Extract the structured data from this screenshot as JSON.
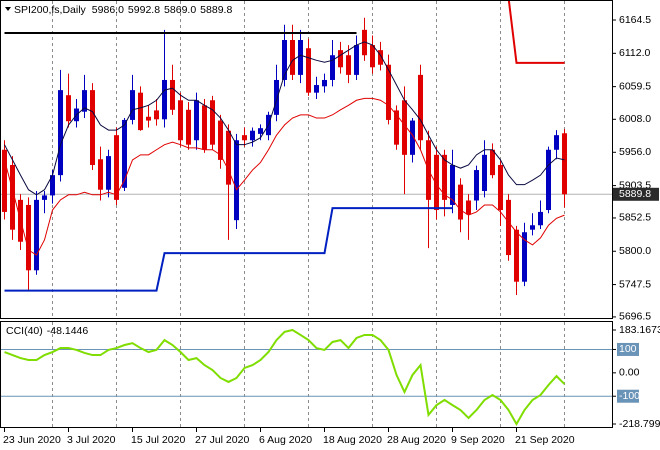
{
  "chart_data": {
    "type": "candlestick",
    "title": "SPI200,fs,Daily",
    "ohlc_labels": [
      "5986.0",
      "5992.8",
      "5869.0",
      "5889.8"
    ],
    "categories": [
      "23 Jun 2020",
      null,
      null,
      null,
      null,
      null,
      null,
      null,
      "3 Jul 2020",
      null,
      null,
      null,
      null,
      null,
      null,
      null,
      "15 Jul 2020",
      null,
      null,
      null,
      null,
      null,
      null,
      null,
      "27 Jul 2020",
      null,
      null,
      null,
      null,
      null,
      null,
      null,
      "6 Aug 2020",
      null,
      null,
      null,
      null,
      null,
      null,
      null,
      "18 Aug 2020",
      null,
      null,
      null,
      null,
      null,
      null,
      null,
      "28 Aug 2020",
      null,
      null,
      null,
      null,
      null,
      null,
      null,
      "9 Sep 2020",
      null,
      null,
      null,
      null,
      null,
      null,
      null,
      "21 Sep 2020",
      null,
      null,
      null,
      null,
      null,
      null
    ],
    "open": [
      5960,
      5936,
      5881,
      5873,
      5770,
      5881,
      5888,
      5920,
      6046,
      6005,
      6020,
      6054,
      5945,
      5897,
      5983,
      5900,
      6007,
      6050,
      6012,
      6022,
      6008,
      6070,
      6038,
      6023,
      5975,
      6030,
      6038,
      6006,
      5990,
      5849,
      5983,
      5975,
      5985,
      5983,
      6015,
      6070,
      6133,
      6078,
      6120,
      6050,
      6060,
      6070,
      6117,
      6109,
      6078,
      6149,
      6125,
      6117,
      6094,
      6022,
      6038,
      5952,
      6078,
      5975,
      5952,
      5952,
      5873,
      5905,
      5880,
      5880,
      5895,
      5960,
      5936,
      5881,
      5834,
      5752,
      5834,
      5841,
      5865,
      5960,
      5986.0
    ],
    "high": [
      5975,
      5950,
      5890,
      5885,
      5895,
      5895,
      5928,
      6086,
      6080,
      6040,
      6078,
      6065,
      5965,
      5960,
      5995,
      6010,
      6078,
      6060,
      6030,
      6040,
      6149,
      6094,
      6050,
      6035,
      6050,
      6040,
      6045,
      6015,
      6000,
      5985,
      5995,
      5995,
      6000,
      6020,
      6094,
      6157,
      6157,
      6149,
      6135,
      6075,
      6080,
      6133,
      6130,
      6125,
      6140,
      6168,
      6140,
      6130,
      6110,
      6030,
      6060,
      6010,
      6094,
      5990,
      5965,
      5960,
      5960,
      5915,
      5890,
      5935,
      5975,
      5970,
      5945,
      5890,
      5840,
      5845,
      5860,
      5880,
      5965,
      5991,
      5992.8
    ],
    "low": [
      5850,
      5818,
      5802,
      5739,
      5763,
      5860,
      5875,
      5910,
      5995,
      5995,
      6010,
      5928,
      5880,
      5885,
      5873,
      5895,
      6000,
      5990,
      5995,
      5998,
      5995,
      6015,
      5965,
      5960,
      5960,
      5955,
      5960,
      5930,
      5818,
      5835,
      5965,
      5965,
      5975,
      5975,
      6005,
      6060,
      6070,
      6065,
      6045,
      6040,
      6050,
      6060,
      6080,
      6065,
      6070,
      6100,
      6080,
      6085,
      6000,
      5960,
      5890,
      5940,
      5960,
      5805,
      5850,
      5855,
      5860,
      5830,
      5818,
      5865,
      5885,
      5915,
      5840,
      5785,
      5731,
      5745,
      5825,
      5835,
      5860,
      5945,
      5869.0
    ],
    "close": [
      5862,
      5834,
      5815,
      5770,
      5881,
      5888,
      5920,
      6054,
      6005,
      6025,
      6054,
      5936,
      5897,
      5950,
      5881,
      6007,
      6054,
      5991,
      6006,
      6008,
      6070,
      6023,
      5975,
      5968,
      6038,
      5960,
      5968,
      5944,
      5905,
      5975,
      5975,
      5990,
      5994,
      6015,
      6070,
      6133,
      6078,
      6133,
      6050,
      6062,
      6070,
      6109,
      6090,
      6078,
      6125,
      6109,
      6090,
      6094,
      6007,
      5968,
      5952,
      6006,
      5975,
      5881,
      5865,
      5881,
      5936,
      5850,
      5858,
      5928,
      5952,
      5920,
      5865,
      5794,
      5752,
      5830,
      5841,
      5862,
      5960,
      5983,
      5889.8
    ],
    "up_color": "#0000c0",
    "down_color": "#e00000",
    "ylim": [
      5694.8,
      6192.9
    ],
    "yticks": [
      6164.5,
      {
        "value": 6112,
        "label": "6112.0"
      },
      6059.5,
      {
        "value": 6008,
        "label": "6008.0"
      },
      {
        "value": 5956,
        "label": "5956.0"
      },
      5903.5,
      5852.5,
      {
        "value": 5800,
        "label": "5800.0"
      },
      5747.5,
      5696.5
    ],
    "overlays": [
      {
        "color": "#0a0a40",
        "width": 1,
        "values": [
          5968,
          5944,
          5920,
          5897,
          5889,
          5897,
          5920,
          5968,
          5999,
          6015,
          6026,
          6020,
          5999,
          5991,
          5991,
          5999,
          6023,
          6026,
          6030,
          6038,
          6054,
          6057,
          6046,
          6038,
          6038,
          6030,
          6023,
          6010,
          5991,
          5968,
          5968,
          5972,
          5979,
          5999,
          6038,
          6078,
          6101,
          6109,
          6105,
          6101,
          6098,
          6101,
          6109,
          6117,
          6125,
          6130,
          6125,
          6109,
          6086,
          6062,
          6038,
          6023,
          6007,
          5983,
          5960,
          5944,
          5936,
          5931,
          5936,
          5952,
          5960,
          5960,
          5944,
          5920,
          5905,
          5905,
          5912,
          5920,
          5936,
          5947,
          5944
        ]
      },
      {
        "color": "#e00000",
        "width": 1,
        "values": [
          5944,
          5897,
          5849,
          5802,
          5794,
          5818,
          5865,
          5881,
          5889,
          5889,
          5893,
          5889,
          5889,
          5893,
          5889,
          5912,
          5944,
          5952,
          5952,
          5960,
          5968,
          5972,
          5968,
          5963,
          5963,
          5960,
          5960,
          5952,
          5928,
          5897,
          5912,
          5928,
          5940,
          5960,
          5983,
          5999,
          6010,
          6015,
          6015,
          6010,
          6010,
          6015,
          6023,
          6030,
          6038,
          6041,
          6041,
          6038,
          6030,
          6015,
          5999,
          5983,
          5960,
          5928,
          5905,
          5889,
          5881,
          5865,
          5857,
          5862,
          5873,
          5873,
          5862,
          5846,
          5830,
          5818,
          5810,
          5821,
          5841,
          5852,
          5857
        ]
      },
      {
        "color": "#0020c0",
        "width": 2,
        "values": [
          5738,
          5738,
          5738,
          5738,
          5738,
          5738,
          5738,
          5738,
          5738,
          5738,
          5738,
          5738,
          5738,
          5738,
          5738,
          5738,
          5738,
          5738,
          5738,
          5738,
          5797,
          5797,
          5797,
          5797,
          5797,
          5797,
          5797,
          5797,
          5797,
          5797,
          5797,
          5797,
          5797,
          5797,
          5797,
          5797,
          5797,
          5797,
          5797,
          5797,
          5797,
          5868,
          5868,
          5868,
          5868,
          5868,
          5868,
          5868,
          5868,
          5868,
          5868,
          5868,
          5868,
          5868,
          5868,
          5868,
          5868,
          null,
          null,
          null,
          null,
          null,
          null,
          null,
          null,
          null,
          null,
          null,
          null,
          null,
          null
        ]
      },
      {
        "color": "#000000",
        "width": 2,
        "values": [
          6144,
          6144,
          6144,
          6144,
          6144,
          6144,
          6144,
          6144,
          6144,
          6144,
          6144,
          6144,
          6144,
          6144,
          6144,
          6144,
          6144,
          6144,
          6144,
          6144,
          6144,
          6144,
          6144,
          6144,
          6144,
          6144,
          6144,
          6144,
          6144,
          6144,
          6144,
          6144,
          6144,
          6144,
          6144,
          6144,
          6144,
          6144,
          6144,
          6144,
          6144,
          6144,
          6144,
          6144,
          6144,
          null,
          null,
          null,
          null,
          null,
          null,
          null,
          null,
          null,
          null,
          null,
          null,
          null,
          null,
          null,
          null,
          null,
          null,
          null,
          null,
          null,
          null,
          null,
          null,
          null,
          null
        ]
      },
      {
        "color": "#e00000",
        "width": 2,
        "values": [
          null,
          null,
          null,
          null,
          null,
          null,
          null,
          null,
          null,
          null,
          null,
          null,
          null,
          null,
          null,
          null,
          null,
          null,
          null,
          null,
          null,
          null,
          null,
          null,
          null,
          null,
          null,
          null,
          null,
          null,
          null,
          null,
          null,
          null,
          null,
          null,
          null,
          null,
          null,
          null,
          null,
          null,
          null,
          null,
          null,
          null,
          null,
          null,
          null,
          null,
          null,
          null,
          null,
          null,
          null,
          null,
          null,
          null,
          null,
          null,
          null,
          null,
          null,
          6200,
          6097,
          6097,
          6097,
          6097,
          6097,
          6097,
          6097
        ]
      }
    ],
    "cci": {
      "title": "CCI(40)",
      "color": "#7fdd00",
      "level_color": "#6a93b8",
      "levels": [
        100,
        -100
      ],
      "values": [
        89,
        76,
        63,
        55,
        55,
        76,
        89,
        106,
        106,
        98,
        85,
        76,
        76,
        98,
        106,
        119,
        127,
        106,
        89,
        98,
        140,
        119,
        89,
        55,
        63,
        33,
        12,
        -22,
        -39,
        -22,
        21,
        33,
        55,
        89,
        140,
        175,
        183.1673,
        162,
        140,
        106,
        98,
        132,
        140,
        106,
        149,
        162,
        162,
        140,
        98,
        -9,
        -82,
        -9,
        33,
        -180,
        -138,
        -116,
        -138,
        -159,
        -193,
        -159,
        -116,
        -95,
        -116,
        -159,
        -218.799,
        -159,
        -116,
        -95,
        -52,
        -14,
        -48.1446
      ],
      "ylim": [
        -218.799,
        183.1673
      ],
      "yticks": [
        183.1673,
        100,
        {
          "value": 0,
          "label": "0.00"
        },
        -100,
        -218.799
      ]
    }
  }
}
